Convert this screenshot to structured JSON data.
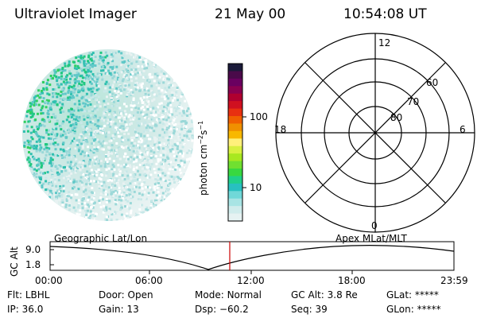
{
  "header": {
    "instrument": "Ultraviolet Imager",
    "date": "21 May 00",
    "time": "10:54:08 UT"
  },
  "colorbar": {
    "unit_label": "photon cm",
    "unit_exp1": "−2",
    "unit_s": "s",
    "unit_exp2": "−1",
    "ticks": [
      "100",
      "10"
    ],
    "colors": [
      "#1a1a3a",
      "#4a0a4a",
      "#6a0060",
      "#8a0050",
      "#b00030",
      "#d01020",
      "#e83010",
      "#f06000",
      "#f09000",
      "#f8b800",
      "#fff07a",
      "#d8f040",
      "#a8e820",
      "#70e030",
      "#38d840",
      "#20d08a",
      "#28c0c0",
      "#70d8d8",
      "#a8e4e4",
      "#d0ecec",
      "#e6f2f2"
    ]
  },
  "polar_plot": {
    "mlt_labels": [
      "12",
      "18",
      "6",
      "0"
    ],
    "lat_labels": [
      "60",
      "70",
      "80"
    ]
  },
  "orbit_panel": {
    "left_title": "Geographic Lat/Lon",
    "right_title": "Apex MLat/MLT",
    "yaxis_label": "GC Alt",
    "y_ticks": [
      "9.0",
      "1.8"
    ],
    "x_ticks": [
      "00:00",
      "06:00",
      "12:00",
      "18:00",
      "23:59"
    ],
    "marker_color": "#cc0000"
  },
  "footer": {
    "row1": [
      {
        "label": "Flt:",
        "value": "LBHL"
      },
      {
        "label": "Door:",
        "value": "Open"
      },
      {
        "label": "Mode:",
        "value": "Normal"
      },
      {
        "label": "GC Alt:",
        "value": "3.8 Re"
      },
      {
        "label": "GLat:",
        "value": "*****"
      }
    ],
    "row2": [
      {
        "label": "IP:",
        "value": "36.0"
      },
      {
        "label": "Gain:",
        "value": "13"
      },
      {
        "label": "Dsp:",
        "value": "−60.2"
      },
      {
        "label": "Seq:",
        "value": "39"
      },
      {
        "label": "GLon:",
        "value": "*****"
      }
    ]
  }
}
